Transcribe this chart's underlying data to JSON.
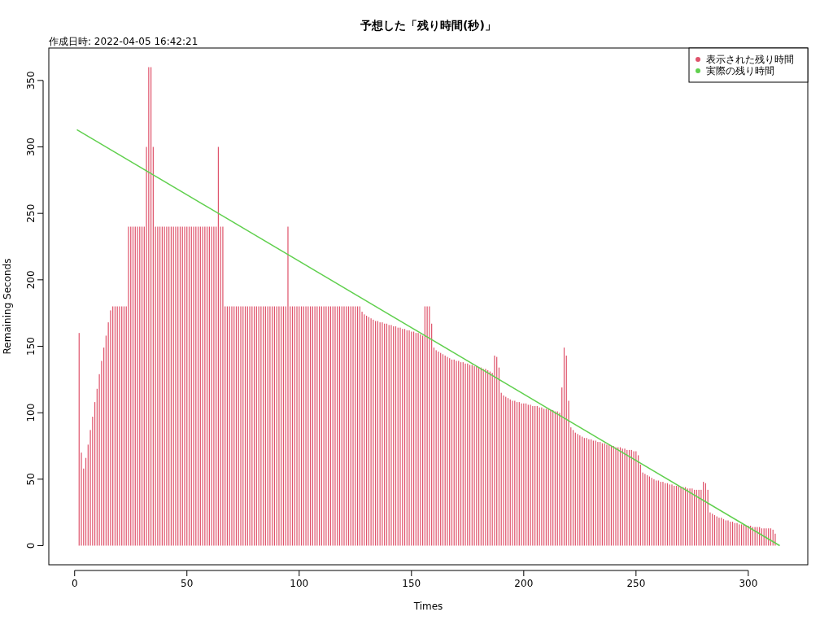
{
  "chart_data": {
    "type": "bar",
    "title": "予想した「残り時間(秒)」",
    "xlabel": "Times",
    "ylabel": "Remaining Seconds",
    "annotations": [
      "作成日時: 2022-04-05 16:42:21"
    ],
    "xlim": [
      -11.5,
      326.5
    ],
    "xticks": [
      0,
      50,
      100,
      150,
      200,
      250,
      300
    ],
    "ylim": [
      -14.4,
      374.4
    ],
    "yticks": [
      0,
      50,
      100,
      150,
      200,
      250,
      300,
      350
    ],
    "grid": false,
    "legend": "top right",
    "series": [
      {
        "name": "表示された残り時間",
        "color": "#df536b",
        "x": [
          2,
          3,
          4,
          5,
          6,
          7,
          8,
          9,
          10,
          11,
          12,
          13,
          14,
          15,
          16,
          17,
          18,
          19,
          20,
          21,
          22,
          23,
          24,
          25,
          26,
          27,
          28,
          29,
          30,
          31,
          32,
          33,
          34,
          35,
          36,
          37,
          38,
          39,
          40,
          41,
          42,
          43,
          44,
          45,
          46,
          47,
          48,
          49,
          50,
          51,
          52,
          53,
          54,
          55,
          56,
          57,
          58,
          59,
          60,
          61,
          62,
          63,
          64,
          65,
          66,
          67,
          68,
          69,
          70,
          71,
          72,
          73,
          74,
          75,
          76,
          77,
          78,
          79,
          80,
          81,
          82,
          83,
          84,
          85,
          86,
          87,
          88,
          89,
          90,
          91,
          92,
          93,
          94,
          95,
          96,
          97,
          98,
          99,
          100,
          101,
          102,
          103,
          104,
          105,
          106,
          107,
          108,
          109,
          110,
          111,
          112,
          113,
          114,
          115,
          116,
          117,
          118,
          119,
          120,
          121,
          122,
          123,
          124,
          125,
          126,
          127,
          128,
          129,
          130,
          131,
          132,
          133,
          134,
          135,
          136,
          137,
          138,
          139,
          140,
          141,
          142,
          143,
          144,
          145,
          146,
          147,
          148,
          149,
          150,
          151,
          152,
          153,
          154,
          155,
          156,
          157,
          158,
          159,
          160,
          161,
          162,
          163,
          164,
          165,
          166,
          167,
          168,
          169,
          170,
          171,
          172,
          173,
          174,
          175,
          176,
          177,
          178,
          179,
          180,
          181,
          182,
          183,
          184,
          185,
          186,
          187,
          188,
          189,
          190,
          191,
          192,
          193,
          194,
          195,
          196,
          197,
          198,
          199,
          200,
          201,
          202,
          203,
          204,
          205,
          206,
          207,
          208,
          209,
          210,
          211,
          212,
          213,
          214,
          215,
          216,
          217,
          218,
          219,
          220,
          221,
          222,
          223,
          224,
          225,
          226,
          227,
          228,
          229,
          230,
          231,
          232,
          233,
          234,
          235,
          236,
          237,
          238,
          239,
          240,
          241,
          242,
          243,
          244,
          245,
          246,
          247,
          248,
          249,
          250,
          251,
          252,
          253,
          254,
          255,
          256,
          257,
          258,
          259,
          260,
          261,
          262,
          263,
          264,
          265,
          266,
          267,
          268,
          269,
          270,
          271,
          272,
          273,
          274,
          275,
          276,
          277,
          278,
          279,
          280,
          281,
          282,
          283,
          284,
          285,
          286,
          287,
          288,
          289,
          290,
          291,
          292,
          293,
          294,
          295,
          296,
          297,
          298,
          299,
          300,
          301,
          302,
          303,
          304,
          305,
          306,
          307,
          308,
          309,
          310,
          311,
          312
        ],
        "values": [
          160,
          70,
          58,
          66,
          76,
          87,
          97,
          108,
          118,
          129,
          139,
          149,
          158,
          168,
          177,
          180,
          180,
          180,
          180,
          180,
          180,
          180,
          240,
          240,
          240,
          240,
          240,
          240,
          240,
          240,
          300,
          360,
          360,
          300,
          240,
          240,
          240,
          240,
          240,
          240,
          240,
          240,
          240,
          240,
          240,
          240,
          240,
          240,
          240,
          240,
          240,
          240,
          240,
          240,
          240,
          240,
          240,
          240,
          240,
          240,
          240,
          240,
          300,
          240,
          240,
          180,
          180,
          180,
          180,
          180,
          180,
          180,
          180,
          180,
          180,
          180,
          180,
          180,
          180,
          180,
          180,
          180,
          180,
          180,
          180,
          180,
          180,
          180,
          180,
          180,
          180,
          180,
          180,
          240,
          180,
          180,
          180,
          180,
          180,
          180,
          180,
          180,
          180,
          180,
          180,
          180,
          180,
          180,
          180,
          180,
          180,
          180,
          180,
          180,
          180,
          180,
          180,
          180,
          180,
          180,
          180,
          180,
          180,
          180,
          180,
          180,
          176,
          174,
          173,
          172,
          171,
          170,
          169,
          169,
          168,
          168,
          167,
          167,
          166,
          166,
          165,
          165,
          164,
          164,
          163,
          163,
          162,
          162,
          161,
          161,
          160,
          160,
          159,
          158,
          180,
          180,
          180,
          167,
          149,
          147,
          146,
          145,
          144,
          143,
          142,
          141,
          140,
          140,
          139,
          139,
          138,
          138,
          137,
          137,
          136,
          136,
          135,
          135,
          134,
          134,
          133,
          133,
          132,
          131,
          130,
          143,
          142,
          134,
          115,
          113,
          112,
          111,
          110,
          109,
          109,
          108,
          108,
          107,
          107,
          107,
          106,
          106,
          105,
          105,
          105,
          104,
          104,
          103,
          103,
          103,
          102,
          102,
          101,
          101,
          100,
          119,
          149,
          143,
          109,
          89,
          87,
          85,
          84,
          83,
          82,
          81,
          81,
          80,
          80,
          79,
          79,
          78,
          78,
          77,
          77,
          76,
          76,
          75,
          75,
          74,
          74,
          74,
          73,
          73,
          72,
          72,
          72,
          71,
          71,
          68,
          61,
          55,
          54,
          53,
          52,
          51,
          50,
          49,
          49,
          48,
          48,
          47,
          47,
          46,
          46,
          45,
          45,
          45,
          44,
          44,
          44,
          43,
          43,
          43,
          42,
          42,
          42,
          42,
          48,
          47,
          42,
          25,
          24,
          23,
          22,
          21,
          21,
          20,
          19,
          19,
          18,
          18,
          17,
          17,
          16,
          16,
          16,
          15,
          15,
          15,
          14,
          14,
          14,
          14,
          13,
          13,
          13,
          13,
          13,
          12,
          9
        ]
      },
      {
        "name": "実際の残り時間",
        "type": "line",
        "color": "#61d04f",
        "x": [
          1,
          314
        ],
        "values": [
          313,
          0
        ]
      }
    ]
  }
}
